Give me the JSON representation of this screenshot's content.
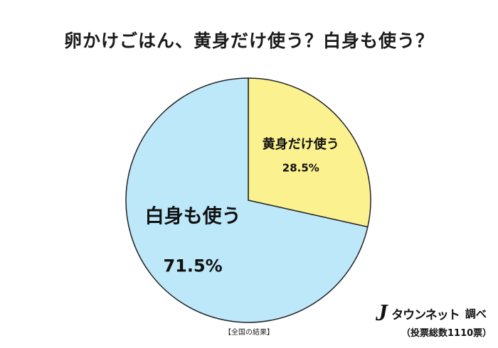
{
  "title": "卵かけごはん、黄身だけ使う？白身も使う？",
  "chart_data": {
    "type": "pie",
    "start": "12 o'clock",
    "direction": "clockwise",
    "slices": [
      {
        "label": "黄身だけ使う",
        "value": 28.5,
        "value_text": "28.5%",
        "color": "#fbf28f"
      },
      {
        "label": "白身も使う",
        "value": 71.5,
        "value_text": "71.5%",
        "color": "#bde8fa"
      }
    ],
    "edge_color": "#222222"
  },
  "footnote": "【全国の結果】",
  "credit": {
    "brand_mark": "J",
    "brand_name": "タウンネット",
    "suffix": "調べ",
    "votes": "（投票総数1110票）"
  }
}
